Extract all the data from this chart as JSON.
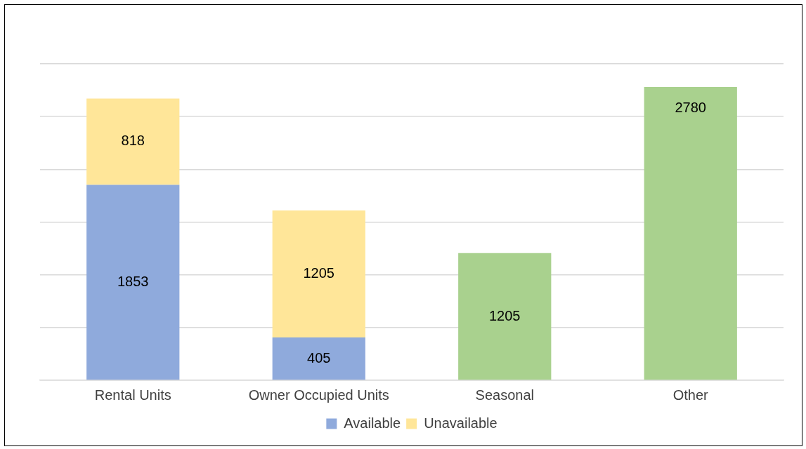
{
  "chart_data": {
    "type": "bar",
    "stacked": true,
    "categories": [
      "Rental Units",
      "Owner Occupied Units",
      "Seasonal",
      "Other"
    ],
    "series": [
      {
        "name": "Available",
        "color": "#8faadc",
        "values": [
          1853,
          405,
          null,
          null
        ]
      },
      {
        "name": "Unavailable",
        "color": "#ffe699",
        "values": [
          818,
          1205,
          null,
          null
        ]
      },
      {
        "color": "#a9d18e",
        "values": [
          null,
          null,
          1205,
          2780
        ]
      }
    ],
    "ylim": [
      0,
      3000
    ],
    "yticks": [
      0,
      500,
      1000,
      1500,
      2000,
      2500,
      3000
    ],
    "tick_labels": "x",
    "grid": "y",
    "legend": "bottom",
    "data_labels": true
  }
}
